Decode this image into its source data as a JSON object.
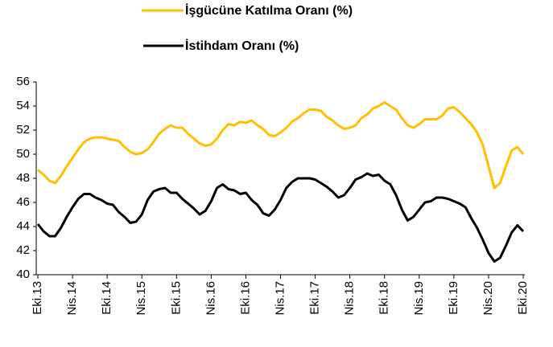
{
  "chart_data": {
    "type": "line",
    "categories": [
      "Eki.13",
      null,
      null,
      null,
      null,
      null,
      "Nis.14",
      null,
      null,
      null,
      null,
      null,
      "Eki.14",
      null,
      null,
      null,
      null,
      null,
      "Nis.15",
      null,
      null,
      null,
      null,
      null,
      "Eki.15",
      null,
      null,
      null,
      null,
      null,
      "Nis.16",
      null,
      null,
      null,
      null,
      null,
      "Eki.16",
      null,
      null,
      null,
      null,
      null,
      "Nis.17",
      null,
      null,
      null,
      null,
      null,
      "Eki.17",
      null,
      null,
      null,
      null,
      null,
      "Nis.18",
      null,
      null,
      null,
      null,
      null,
      "Eki.18",
      null,
      null,
      null,
      null,
      null,
      "Nis.19",
      null,
      null,
      null,
      null,
      null,
      "Eki.19",
      null,
      null,
      null,
      null,
      null,
      "Nis.20",
      null,
      null,
      null,
      null,
      null,
      "Eki.20"
    ],
    "series": [
      {
        "name": "İşgücüne Katılma Oranı (%)",
        "color": "#ffc000",
        "values": [
          48.7,
          48.3,
          47.8,
          47.6,
          48.2,
          49.0,
          49.7,
          50.4,
          51.0,
          51.3,
          51.4,
          51.4,
          51.3,
          51.2,
          51.1,
          50.6,
          50.2,
          50.0,
          50.1,
          50.4,
          51.0,
          51.7,
          52.1,
          52.4,
          52.2,
          52.2,
          51.7,
          51.3,
          50.9,
          50.7,
          50.8,
          51.3,
          52.0,
          52.5,
          52.4,
          52.7,
          52.6,
          52.8,
          52.4,
          52.1,
          51.6,
          51.5,
          51.8,
          52.2,
          52.7,
          53.0,
          53.4,
          53.7,
          53.7,
          53.6,
          53.1,
          52.8,
          52.4,
          52.1,
          52.2,
          52.4,
          53.0,
          53.3,
          53.8,
          54.0,
          54.3,
          54.0,
          53.7,
          53.0,
          52.4,
          52.2,
          52.5,
          52.9,
          52.9,
          52.9,
          53.2,
          53.8,
          53.9,
          53.5,
          53.0,
          52.5,
          51.8,
          50.8,
          49.0,
          47.2,
          47.6,
          49.0,
          50.3,
          50.6,
          50.0
        ]
      },
      {
        "name": "İstihdam Oranı (%)",
        "color": "#000000",
        "values": [
          44.2,
          43.6,
          43.2,
          43.2,
          43.9,
          44.8,
          45.6,
          46.3,
          46.7,
          46.7,
          46.4,
          46.2,
          45.9,
          45.8,
          45.2,
          44.8,
          44.3,
          44.4,
          45.0,
          46.2,
          46.9,
          47.1,
          47.2,
          46.8,
          46.8,
          46.3,
          45.9,
          45.5,
          45.0,
          45.3,
          46.1,
          47.2,
          47.5,
          47.1,
          47.0,
          46.7,
          46.8,
          46.2,
          45.8,
          45.1,
          44.9,
          45.4,
          46.2,
          47.2,
          47.7,
          48.0,
          48.0,
          48.0,
          47.9,
          47.6,
          47.3,
          46.9,
          46.4,
          46.6,
          47.2,
          47.9,
          48.1,
          48.4,
          48.2,
          48.3,
          47.8,
          47.5,
          46.6,
          45.4,
          44.5,
          44.8,
          45.4,
          46.0,
          46.1,
          46.4,
          46.4,
          46.3,
          46.1,
          45.9,
          45.6,
          44.7,
          43.9,
          42.9,
          41.8,
          41.1,
          41.4,
          42.4,
          43.5,
          44.1,
          43.6
        ]
      }
    ],
    "ylim": [
      40,
      56
    ],
    "yticks": [
      40,
      42,
      44,
      46,
      48,
      50,
      52,
      54,
      56
    ],
    "grid": false,
    "legend": "top"
  }
}
